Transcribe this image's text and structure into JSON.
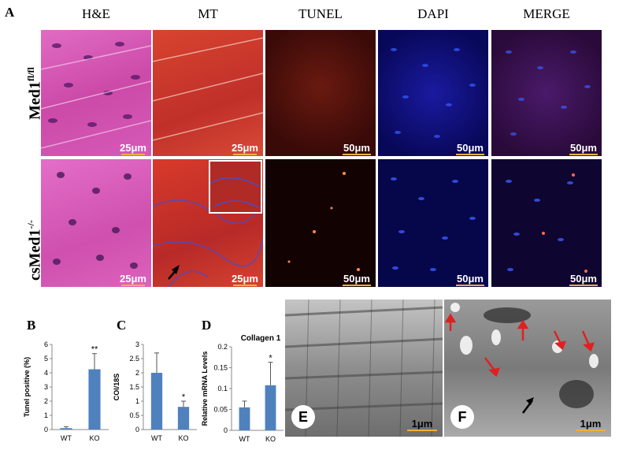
{
  "panel_a": {
    "letter": "A",
    "columns": [
      "H&E",
      "MT",
      "TUNEL",
      "DAPI",
      "MERGE"
    ],
    "rows": [
      {
        "label": "Med1",
        "sup": "fl/fl",
        "scales": [
          "25μm",
          "25μm",
          "50μm",
          "50μm",
          "50μm"
        ]
      },
      {
        "label": "csMed1",
        "sup": "-/-",
        "scales": [
          "25μm",
          "25μm",
          "50μm",
          "50μm",
          "50μm"
        ]
      }
    ]
  },
  "panel_letters": {
    "b": "B",
    "c": "C",
    "d": "D",
    "e": "E",
    "f": "F"
  },
  "em_scales": {
    "e": "1μm",
    "f": "1μm"
  },
  "colors": {
    "bar": "#4f81bd",
    "he": "#d24fb4",
    "mt": "#c8382c",
    "tunel": "#3a0a08",
    "dapi": "#0a0a66",
    "merge": "#3a0a44",
    "scale": "#f0b03a",
    "arrow_red": "#e02020"
  },
  "chart_data": [
    {
      "type": "bar",
      "panel": "B",
      "categories": [
        "WT",
        "KO"
      ],
      "values": [
        0.1,
        4.25
      ],
      "errors": [
        0.1,
        1.1
      ],
      "significance": [
        "",
        "**"
      ],
      "ylabel": "Tunel positive  (%)",
      "ylim": [
        0,
        6
      ],
      "yticks": [
        "0",
        "1",
        "2",
        "3",
        "4",
        "5",
        "6"
      ],
      "tick_values": [
        0,
        1,
        2,
        3,
        4,
        5,
        6
      ]
    },
    {
      "type": "bar",
      "panel": "C",
      "categories": [
        "WT",
        "KO"
      ],
      "values": [
        2.0,
        0.8
      ],
      "errors": [
        0.7,
        0.2
      ],
      "significance": [
        "",
        "*"
      ],
      "ylabel": "COl/18S",
      "ylim": [
        0,
        3
      ],
      "yticks": [
        "0",
        "0.5",
        "1",
        "1.5",
        "2",
        "2.5",
        "3"
      ],
      "tick_values": [
        0,
        0.5,
        1,
        1.5,
        2,
        2.5,
        3
      ]
    },
    {
      "type": "bar",
      "panel": "D",
      "title": "Collagen 1",
      "categories": [
        "WT",
        "KO"
      ],
      "values": [
        0.055,
        0.108
      ],
      "errors": [
        0.015,
        0.055
      ],
      "significance": [
        "",
        "*"
      ],
      "ylabel": "Relative mRNA Levels",
      "ylim": [
        0,
        0.2
      ],
      "yticks": [
        "0",
        "0.05",
        "0.1",
        "0.15",
        "0.2"
      ],
      "tick_values": [
        0,
        0.05,
        0.1,
        0.15,
        0.2
      ]
    }
  ]
}
